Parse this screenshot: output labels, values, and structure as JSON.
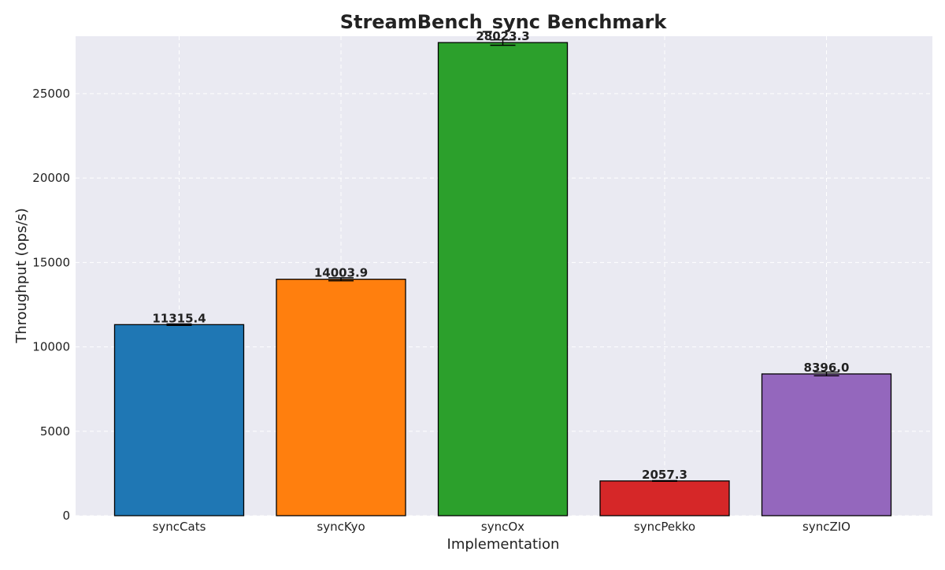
{
  "chart_data": {
    "type": "bar",
    "title": "StreamBench_sync Benchmark",
    "xlabel": "Implementation",
    "ylabel": "Throughput (ops/s)",
    "categories": [
      "syncCats",
      "syncKyo",
      "syncOx",
      "syncPekko",
      "syncZIO"
    ],
    "values": [
      11315.4,
      14003.9,
      28023.3,
      2057.3,
      8396.0
    ],
    "value_labels": [
      "11315.4",
      "14003.9",
      "28023.3",
      "2057.3",
      "8396.0"
    ],
    "error_margins": [
      45,
      90,
      160,
      20,
      110
    ],
    "colors": [
      "#1f77b4",
      "#ff7f0e",
      "#2ca02c",
      "#d62728",
      "#9467bd"
    ],
    "ylim": [
      0,
      28400
    ],
    "yticks": [
      0,
      5000,
      10000,
      15000,
      20000,
      25000
    ],
    "ytick_labels": [
      "0",
      "5000",
      "10000",
      "15000",
      "20000",
      "25000"
    ],
    "grid": true,
    "background_color": "#eaeaf2"
  }
}
